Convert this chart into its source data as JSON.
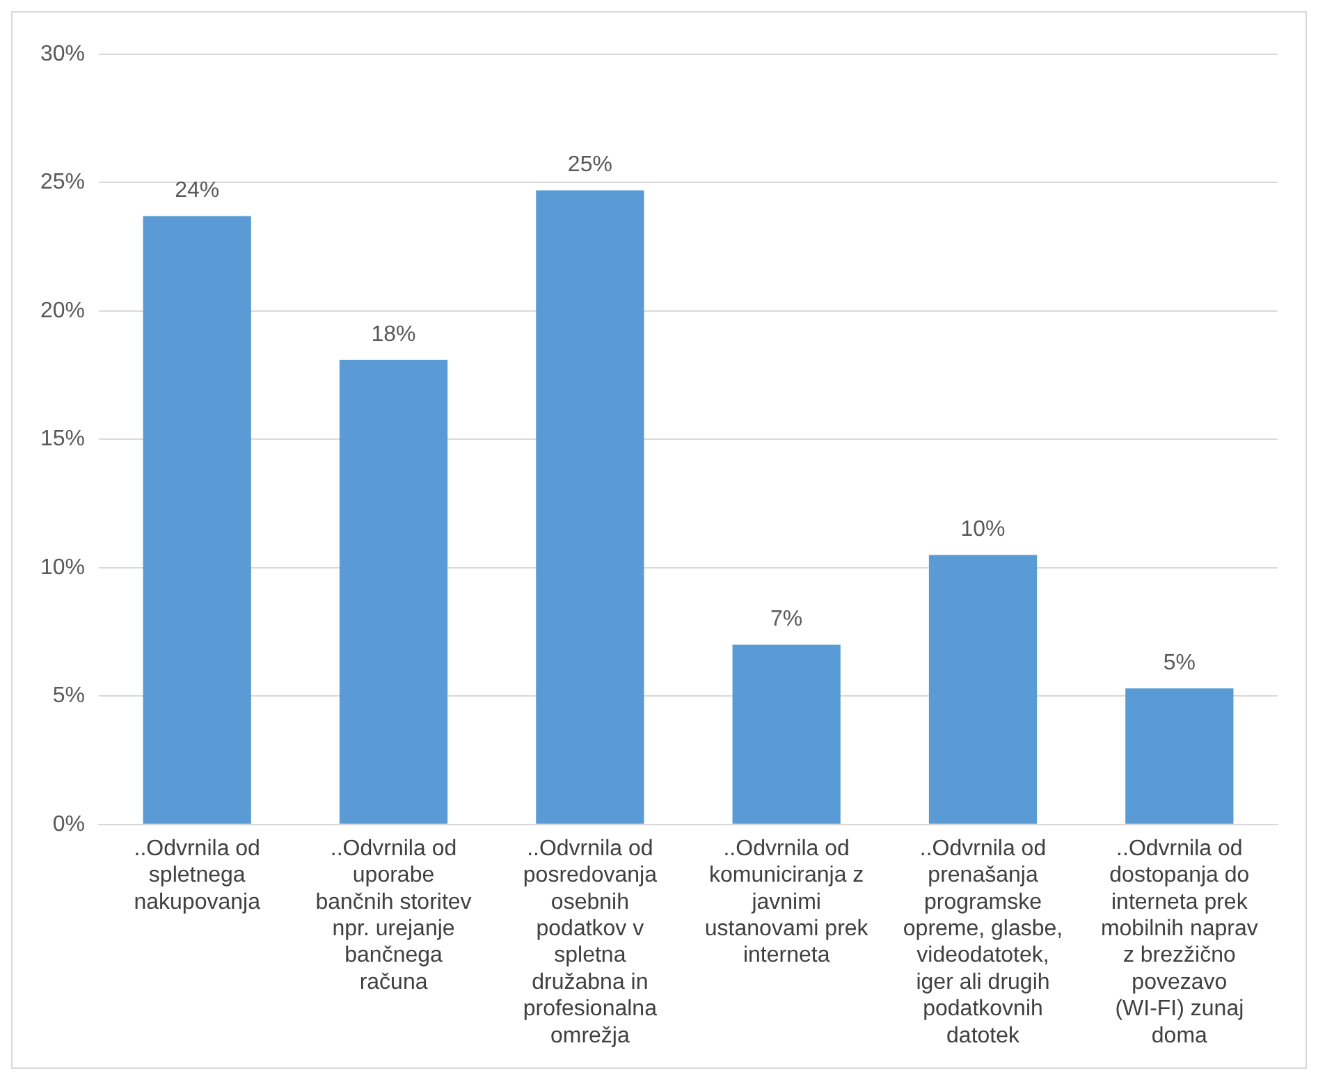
{
  "chart_data": {
    "type": "bar",
    "categories": [
      "..Odvrnila od spletnega nakupovanja",
      "..Odvrnila od uporabe bančnih storitev npr. urejanje bančnega računa",
      "..Odvrnila od posredovanja osebnih podatkov v spletna družabna in profesionalna omrežja",
      "..Odvrnila od komuniciranja z javnimi ustanovami prek interneta",
      "..Odvrnila od prenašanja programske opreme, glasbe, videodatotek, iger ali drugih podatkovnih datotek",
      "..Odvrnila od dostopanja do interneta prek mobilnih naprav z brezžično povezavo (WI-FI) zunaj doma"
    ],
    "values": [
      23.7,
      18.1,
      24.7,
      7.0,
      10.5,
      5.3
    ],
    "value_labels": [
      "24%",
      "18%",
      "25%",
      "7%",
      "10%",
      "5%"
    ],
    "color": "#5b9bd5",
    "ylim": [
      0,
      30
    ],
    "yticks": [
      {
        "value": 0,
        "label": "0%"
      },
      {
        "value": 5,
        "label": "5%"
      },
      {
        "value": 10,
        "label": "10%"
      },
      {
        "value": 15,
        "label": "15%"
      },
      {
        "value": 20,
        "label": "20%"
      },
      {
        "value": 25,
        "label": "25%"
      },
      {
        "value": 30,
        "label": "30%"
      }
    ],
    "grid": "y",
    "legend": false
  }
}
